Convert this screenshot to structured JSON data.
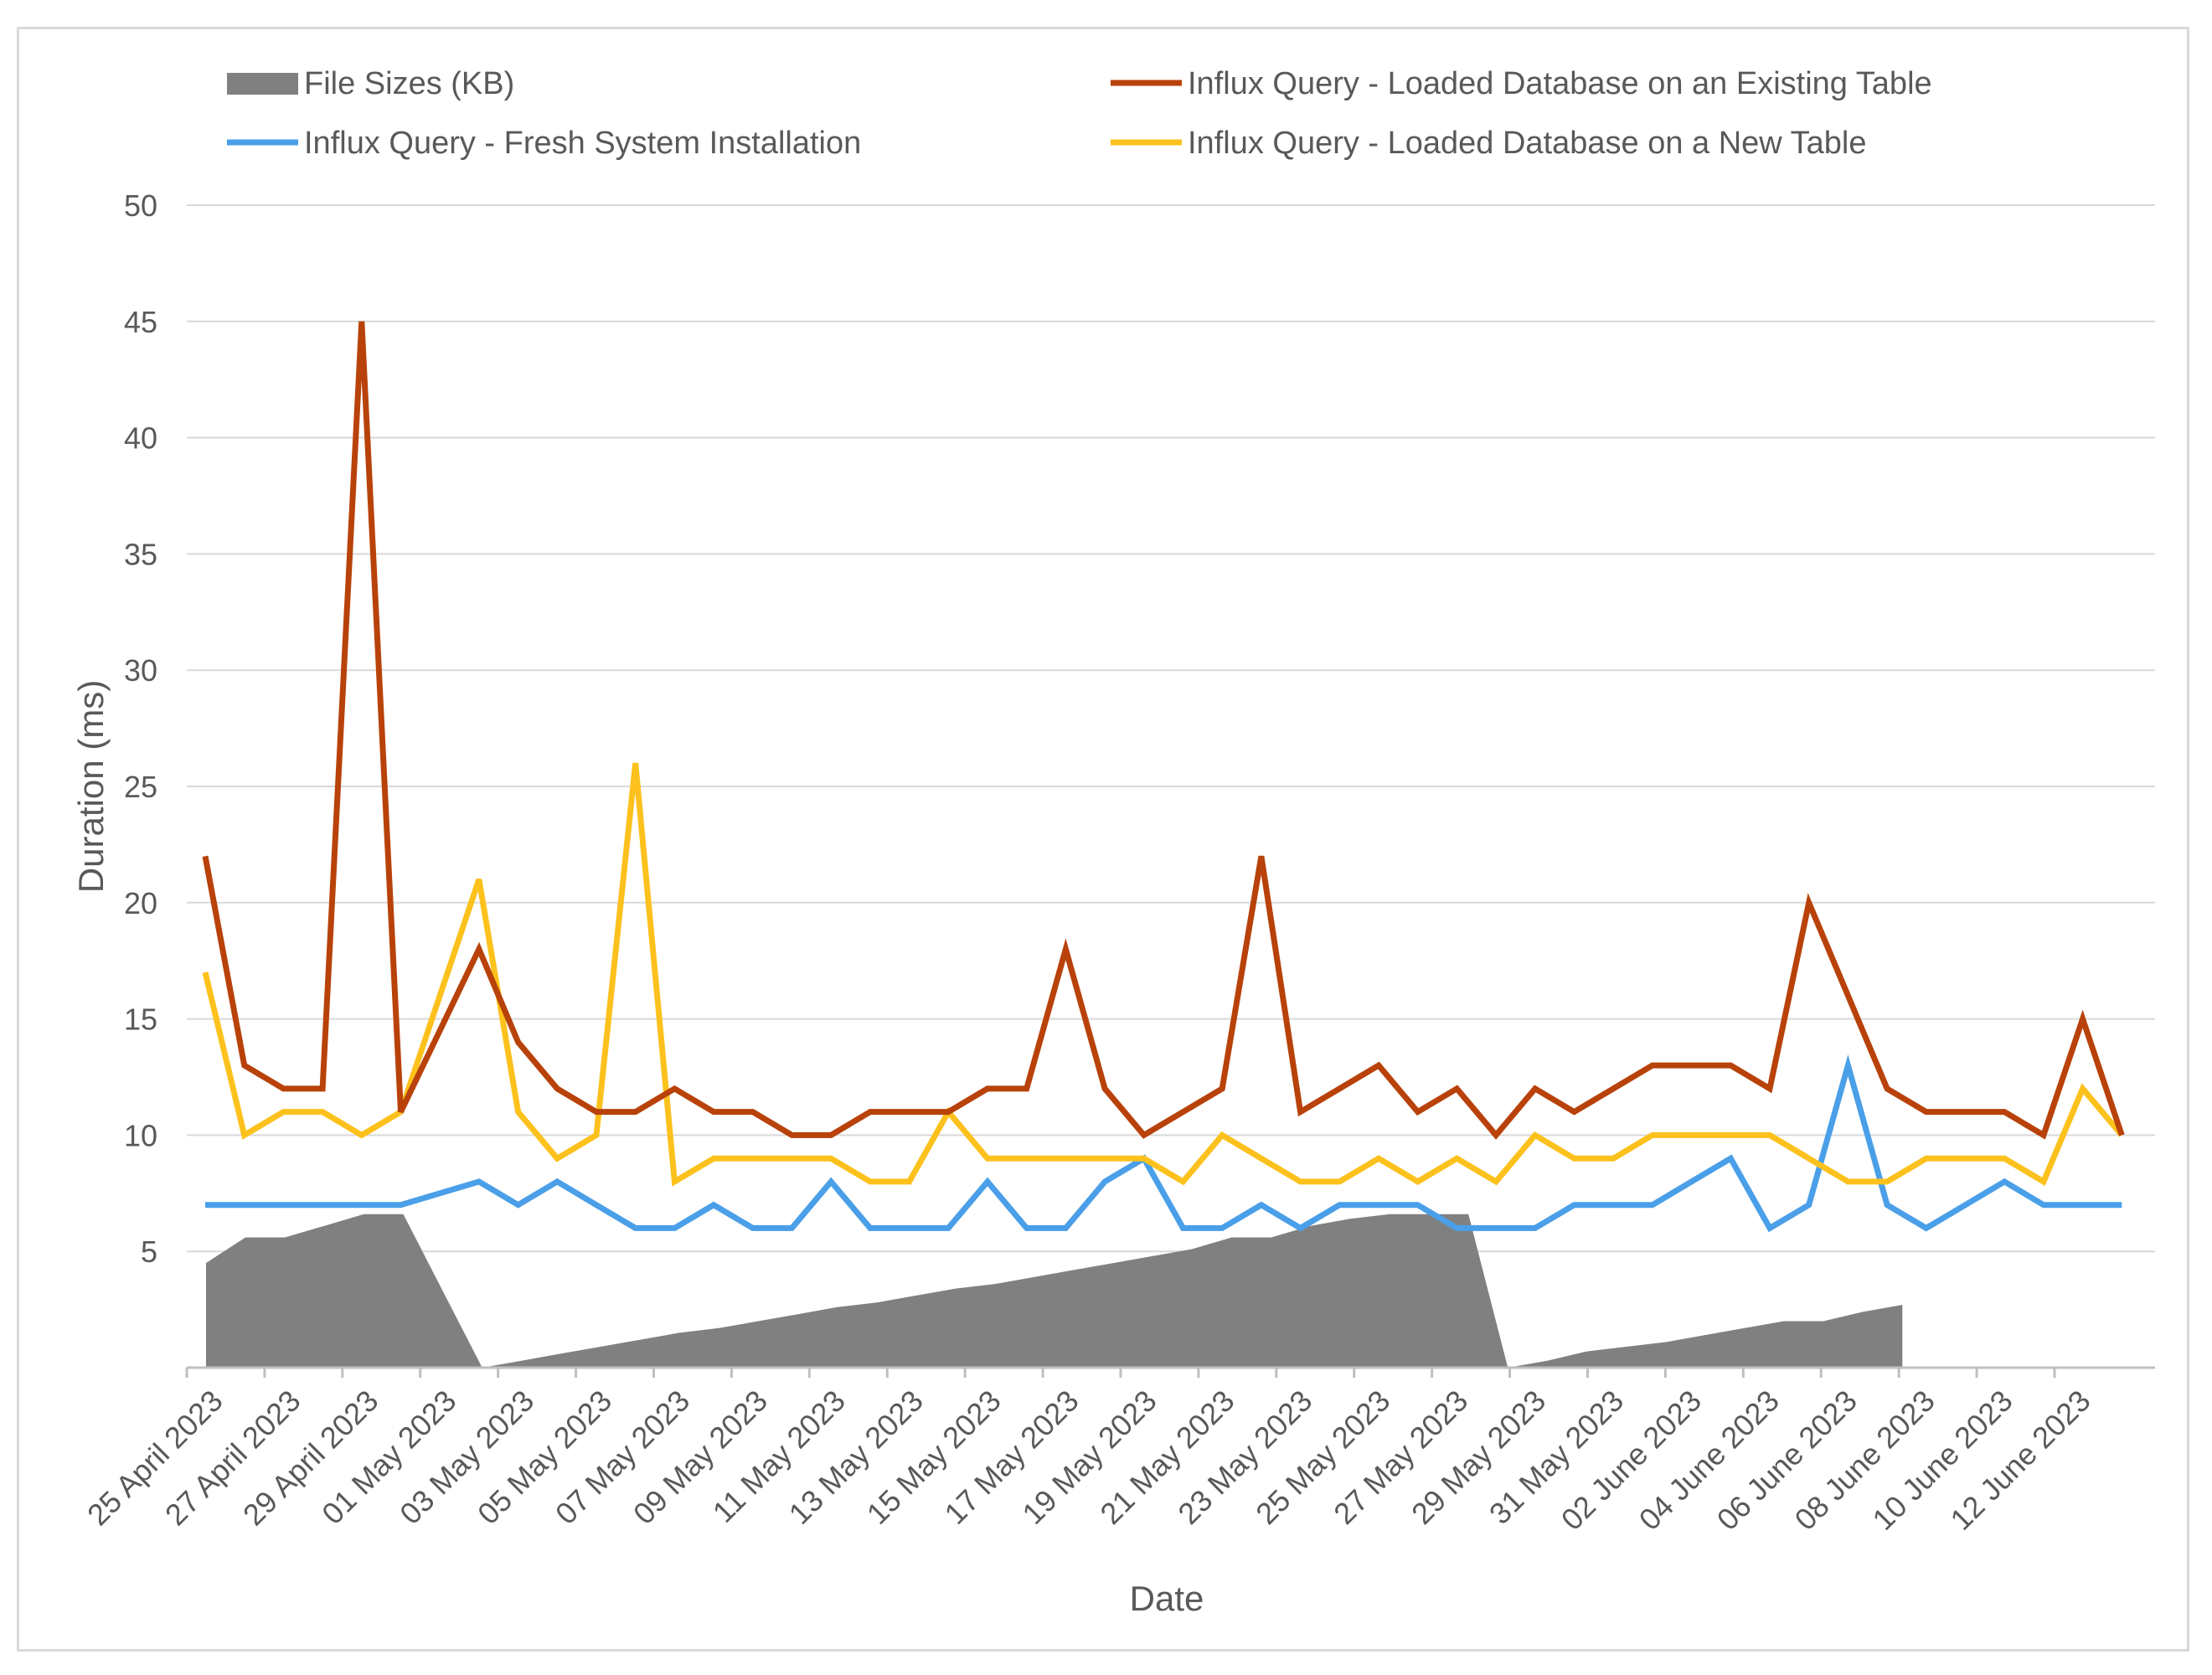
{
  "chart_data": {
    "type": "line",
    "title": "",
    "xlabel": "Date",
    "ylabel": "Duration (ms)",
    "ylim": [
      0,
      50
    ],
    "yticks": [
      "5",
      "10",
      "15",
      "20",
      "25",
      "30",
      "35",
      "40",
      "45",
      "50"
    ],
    "grid": true,
    "legend_position": "top",
    "x_tick_labels": [
      "25 April 2023",
      "27 April 2023",
      "29 April 2023",
      "01 May 2023",
      "03 May 2023",
      "05 May 2023",
      "07 May 2023",
      "09 May 2023",
      "11 May 2023",
      "13 May 2023",
      "15 May 2023",
      "17 May 2023",
      "19 May 2023",
      "21 May 2023",
      "23 May 2023",
      "25 May 2023",
      "27 May 2023",
      "29 May 2023",
      "31 May 2023",
      "02 June 2023",
      "04 June 2023",
      "06 June 2023",
      "08 June 2023",
      "10 June 2023",
      "12 June 2023"
    ],
    "series": [
      {
        "name": "File Sizes (KB)",
        "kind": "area",
        "color": "#808080",
        "values": [
          4.5,
          5.6,
          5.6,
          6.1,
          6.6,
          6.6,
          3.3,
          0.0,
          0.3,
          0.6,
          0.9,
          1.2,
          1.5,
          1.7,
          2.0,
          2.3,
          2.6,
          2.8,
          3.1,
          3.4,
          3.6,
          3.9,
          4.2,
          4.5,
          4.8,
          5.1,
          5.6,
          5.6,
          6.1,
          6.4,
          6.6,
          6.6,
          6.6,
          0.0,
          0.3,
          0.7,
          0.9,
          1.1,
          1.4,
          1.7,
          2.0,
          2.0,
          2.4,
          2.7
        ]
      },
      {
        "name": "Influx Query - Fresh System Installation",
        "kind": "line",
        "color": "#4a9fe8",
        "values": [
          7,
          7,
          7,
          7,
          7,
          7,
          7.5,
          8,
          7,
          8,
          7,
          6,
          6,
          7,
          6,
          6,
          8,
          6,
          6,
          6,
          8,
          6,
          6,
          8,
          9,
          6,
          6,
          7,
          6,
          7,
          7,
          7,
          6,
          6,
          6,
          7,
          7,
          7,
          8,
          9,
          6,
          7,
          13,
          7,
          6,
          7,
          8,
          7,
          7,
          7
        ]
      },
      {
        "name": "Influx Query - Loaded Database on an Existing Table",
        "kind": "line",
        "color": "#b8420a",
        "values": [
          22,
          13,
          12,
          12,
          45,
          11,
          14.5,
          18,
          14,
          12,
          11,
          11,
          12,
          11,
          11,
          10,
          10,
          11,
          11,
          11,
          12,
          12,
          18,
          12,
          10,
          11,
          12,
          22,
          11,
          12,
          13,
          11,
          12,
          10,
          12,
          11,
          12,
          13,
          13,
          13,
          12,
          20,
          16,
          12,
          11,
          11,
          11,
          10,
          15,
          10
        ]
      },
      {
        "name": "Influx Query - Loaded Database on a New Table",
        "kind": "line",
        "color": "#fcc11c",
        "values": [
          17,
          10,
          11,
          11,
          10,
          11,
          16,
          21,
          11,
          9,
          10,
          26,
          8,
          9,
          9,
          9,
          9,
          8,
          8,
          11,
          9,
          9,
          9,
          9,
          9,
          8,
          10,
          9,
          8,
          8,
          9,
          8,
          9,
          8,
          10,
          9,
          9,
          10,
          10,
          10,
          10,
          9,
          8,
          8,
          9,
          9,
          9,
          8,
          12,
          10
        ]
      }
    ],
    "legend": [
      "File Sizes (KB)",
      "Influx Query - Loaded Database on an Existing Table",
      "Influx Query - Fresh System Installation",
      "Influx Query - Loaded Database on a New Table"
    ]
  }
}
